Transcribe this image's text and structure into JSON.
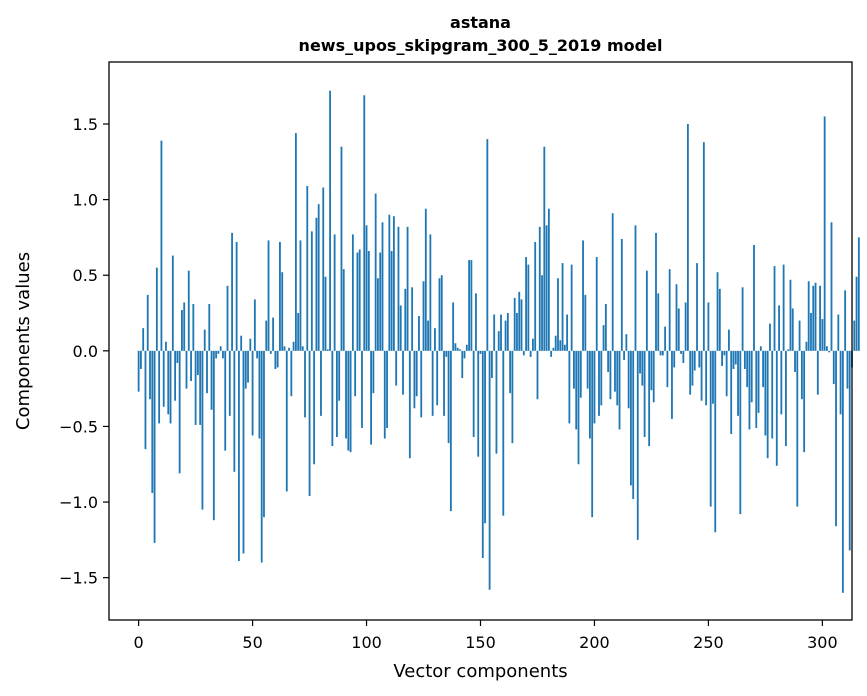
{
  "chart_data": {
    "type": "bar",
    "title_line1": "astana",
    "title_line2": "news_upos_skipgram_300_5_2019 model",
    "xlabel": "Vector components",
    "ylabel": "Components values",
    "xlim": [
      -13,
      313
    ],
    "ylim": [
      -1.78,
      1.91
    ],
    "xticks": [
      0,
      50,
      100,
      150,
      200,
      250,
      300
    ],
    "yticks": [
      -1.5,
      -1.0,
      -0.5,
      0.0,
      0.5,
      1.0,
      1.5
    ],
    "ytick_labels": [
      "−1.5",
      "−1.0",
      "−0.5",
      "0.0",
      "0.5",
      "1.0",
      "1.5"
    ],
    "bar_color": "#1f77b4",
    "values": [
      -0.27,
      -0.12,
      0.15,
      -0.65,
      0.37,
      -0.32,
      -0.94,
      -1.27,
      0.55,
      -0.48,
      1.39,
      -0.37,
      0.06,
      -0.42,
      -0.48,
      0.63,
      -0.33,
      -0.08,
      -0.81,
      0.27,
      0.32,
      -0.25,
      0.53,
      -0.2,
      0.31,
      -0.49,
      -0.16,
      -0.49,
      -1.05,
      0.14,
      -0.28,
      0.31,
      -0.39,
      -1.12,
      -0.05,
      -0.02,
      0.03,
      -0.05,
      -0.66,
      0.43,
      -0.43,
      0.78,
      -0.8,
      0.72,
      -1.39,
      0.1,
      -1.34,
      -0.25,
      -0.21,
      0.08,
      -0.56,
      0.34,
      -0.05,
      -0.58,
      -1.4,
      -1.1,
      0.2,
      0.73,
      -0.02,
      0.22,
      -0.12,
      -0.11,
      0.72,
      0.52,
      0.03,
      -0.93,
      0.02,
      -0.3,
      0.06,
      1.44,
      0.25,
      0.73,
      0.03,
      -0.44,
      1.09,
      -0.96,
      0.79,
      -0.75,
      0.88,
      0.97,
      -0.43,
      1.08,
      0.49,
      0.01,
      1.72,
      -0.63,
      0.77,
      -0.57,
      -0.33,
      1.35,
      0.54,
      -0.58,
      -0.66,
      -0.67,
      0.77,
      -0.3,
      0.65,
      0.67,
      -0.51,
      1.69,
      0.83,
      0.66,
      -0.62,
      -0.28,
      1.04,
      0.48,
      0.65,
      0.85,
      -0.58,
      -0.51,
      0.9,
      0.66,
      0.89,
      -0.23,
      0.82,
      0.3,
      -0.29,
      0.41,
      0.82,
      -0.71,
      0.42,
      -0.38,
      -0.3,
      0.23,
      -0.44,
      0.46,
      0.94,
      0.2,
      0.77,
      -0.43,
      0.15,
      -0.36,
      0.48,
      0.5,
      -0.43,
      -0.04,
      -0.61,
      -1.06,
      0.32,
      0.05,
      0.02,
      0.01,
      -0.18,
      -0.05,
      0.04,
      0.6,
      0.6,
      -0.57,
      0.38,
      -0.7,
      -0.02,
      -1.37,
      -1.14,
      1.4,
      -1.58,
      -0.18,
      0.24,
      -0.68,
      0.13,
      0.24,
      -1.09,
      0.2,
      0.25,
      -0.28,
      -0.61,
      0.35,
      0.25,
      0.39,
      0.34,
      -0.03,
      0.62,
      0.57,
      -0.04,
      0.08,
      0.72,
      -0.32,
      0.82,
      0.5,
      1.35,
      0.83,
      0.94,
      -0.04,
      0.02,
      0.1,
      0.48,
      0.07,
      0.58,
      0.04,
      0.24,
      -0.48,
      0.57,
      -0.25,
      -0.52,
      -0.75,
      -0.31,
      0.73,
      0.37,
      -0.25,
      -0.58,
      -1.1,
      -0.48,
      0.62,
      -0.43,
      -0.36,
      0.17,
      0.31,
      -0.14,
      -0.32,
      0.91,
      -0.27,
      -0.36,
      -0.52,
      0.74,
      -0.06,
      0.11,
      -0.38,
      -0.89,
      -0.98,
      0.83,
      -1.25,
      -0.15,
      -0.23,
      -0.57,
      0.53,
      -0.63,
      -0.26,
      -0.34,
      0.78,
      0.38,
      -0.03,
      -0.03,
      0.16,
      -0.24,
      0.54,
      -0.45,
      -0.11,
      0.44,
      0.28,
      -0.02,
      -0.08,
      0.32,
      1.5,
      -0.29,
      -0.23,
      -0.13,
      0.58,
      -0.11,
      -0.33,
      1.38,
      -0.36,
      0.32,
      -1.03,
      -0.35,
      -1.2,
      0.52,
      0.41,
      -0.1,
      -0.03,
      -0.3,
      0.14,
      -0.55,
      -0.12,
      -0.09,
      -0.43,
      -1.08,
      0.42,
      -0.12,
      -0.24,
      -0.52,
      -0.34,
      0.7,
      -0.51,
      -0.41,
      0.03,
      -0.24,
      -0.56,
      -0.71,
      0.18,
      -0.58,
      0.56,
      -0.76,
      0.3,
      -0.42,
      0.57,
      -0.63,
      0.01,
      0.47,
      0.28,
      -0.14,
      -1.03,
      0.2,
      -0.32,
      -0.67,
      0.06,
      0.46,
      0.25,
      0.43,
      0.45,
      -0.29,
      0.43
    ],
    "extra_values": [
      0.21,
      1.55,
      0.03,
      -0.01,
      0.85,
      -0.22,
      -1.16,
      0.24,
      -0.42,
      -1.6,
      0.4,
      -0.25,
      -1.32,
      -0.11,
      0.2,
      0.49,
      0.75
    ]
  }
}
